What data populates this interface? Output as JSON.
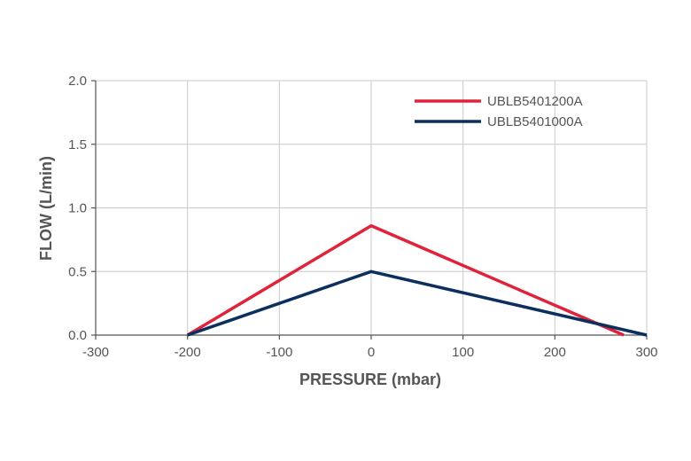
{
  "chart_data": {
    "type": "line",
    "title": "",
    "xlabel": "PRESSURE (mbar)",
    "ylabel": "FLOW (L/min)",
    "xlim": [
      -300,
      300
    ],
    "ylim": [
      0,
      2.0
    ],
    "xticks": [
      -300,
      -200,
      -100,
      0,
      100,
      200,
      300
    ],
    "xtick_labels": [
      "-300",
      "-200",
      "-100",
      "0",
      "100",
      "200",
      "300"
    ],
    "yticks": [
      0,
      0.5,
      1.0,
      1.5,
      2.0
    ],
    "ytick_labels": [
      "0.0",
      "0.5",
      "1.0",
      "1.5",
      "2.0"
    ],
    "grid": true,
    "legend_position": "top-right",
    "series": [
      {
        "name": "UBLB5401200A",
        "color": "#e0233a",
        "points": [
          [
            -200,
            0
          ],
          [
            0,
            0.86
          ],
          [
            275,
            0
          ]
        ]
      },
      {
        "name": "UBLB5401000A",
        "color": "#0d2f5e",
        "points": [
          [
            -200,
            0
          ],
          [
            0,
            0.5
          ],
          [
            300,
            0
          ]
        ]
      }
    ]
  }
}
